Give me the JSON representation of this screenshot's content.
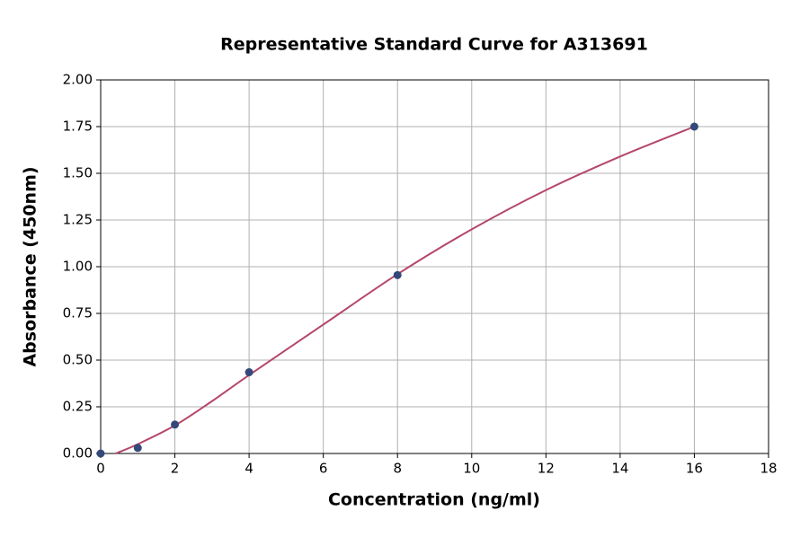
{
  "chart_data": {
    "type": "scatter",
    "title": "Representative Standard Curve for A313691",
    "xlabel": "Concentration (ng/ml)",
    "ylabel": "Absorbance (450nm)",
    "xlim": [
      0,
      18
    ],
    "xticks": [
      0,
      2,
      4,
      6,
      8,
      10,
      12,
      14,
      16,
      18
    ],
    "ylim": [
      0,
      2
    ],
    "yticks": [
      {
        "value": 0,
        "label": "0.00"
      },
      {
        "value": 0.25,
        "label": "0.25"
      },
      {
        "value": 0.5,
        "label": "0.50"
      },
      {
        "value": 0.75,
        "label": "0.75"
      },
      {
        "value": 1,
        "label": "1.00"
      },
      {
        "value": 1.25,
        "label": "1.25"
      },
      {
        "value": 1.5,
        "label": "1.50"
      },
      {
        "value": 1.75,
        "label": "1.75"
      },
      {
        "value": 2,
        "label": "2.00"
      }
    ],
    "grid": true,
    "series": [
      {
        "color": "#34497a",
        "x": [
          0,
          1,
          2,
          4,
          8,
          16
        ],
        "values": [
          0.0,
          0.03,
          0.155,
          0.435,
          0.955,
          1.75
        ]
      }
    ],
    "curve": {
      "color": "#b5476a",
      "x": [
        0.4,
        1,
        2,
        3,
        4,
        6,
        8,
        10,
        12,
        14,
        16
      ],
      "values": [
        0,
        0.05,
        0.15,
        0.28,
        0.42,
        0.69,
        0.96,
        1.2,
        1.41,
        1.59,
        1.75
      ]
    }
  }
}
